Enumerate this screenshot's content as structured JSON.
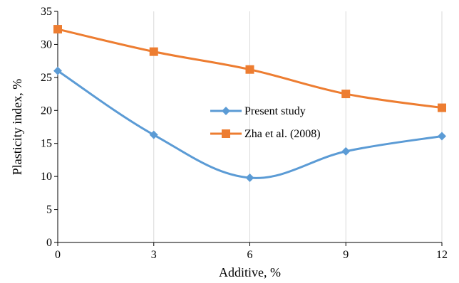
{
  "chart_data": {
    "type": "line",
    "title": "",
    "xlabel": "Additive, %",
    "ylabel": "Plasticity index, %",
    "x": [
      0,
      3,
      6,
      9,
      12
    ],
    "xticks": [
      "0",
      "3",
      "6",
      "9",
      "12"
    ],
    "xlim": [
      0,
      12
    ],
    "ylim": [
      0,
      35
    ],
    "yticks": [
      "0",
      "5",
      "10",
      "15",
      "20",
      "25",
      "30",
      "35"
    ],
    "grid": "vertical",
    "legend_position": "center",
    "smooth": true,
    "series": [
      {
        "name": "Present study",
        "values": [
          26,
          16.3,
          9.8,
          13.8,
          16.1
        ],
        "color": "#5B9BD5",
        "marker": "diamond"
      },
      {
        "name": "Zha et al. (2008)",
        "values": [
          32.3,
          28.9,
          26.2,
          22.5,
          20.4
        ],
        "color": "#ED7D31",
        "marker": "square"
      }
    ]
  }
}
